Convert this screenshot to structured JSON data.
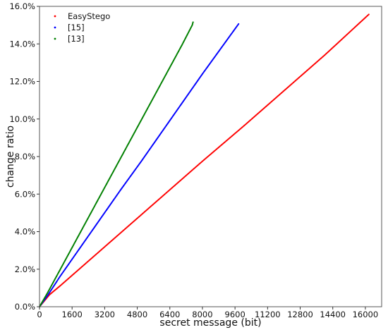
{
  "chart_data": {
    "type": "scatter",
    "title": "",
    "xlabel": "secret message (bit)",
    "ylabel": "change ratio",
    "xlim": [
      0,
      16800
    ],
    "ylim": [
      0,
      16
    ],
    "grid": false,
    "legend_position": "top-left",
    "x_ticks": [
      0,
      1600,
      3200,
      4800,
      6400,
      8000,
      9600,
      11200,
      12800,
      14400,
      16000
    ],
    "x_tick_labels": [
      "0",
      "1600",
      "3200",
      "4800",
      "6400",
      "8000",
      "9600",
      "11200",
      "12800",
      "14400",
      "16000"
    ],
    "y_ticks": [
      0,
      2,
      4,
      6,
      8,
      10,
      12,
      14,
      16
    ],
    "y_tick_labels": [
      "0.0%",
      "2.0%",
      "4.0%",
      "6.0%",
      "8.0%",
      "10.0%",
      "12.0%",
      "14.0%",
      "16.0%"
    ],
    "series": [
      {
        "name": "EasyStego",
        "color": "#ff0000",
        "points": [
          [
            0,
            0
          ],
          [
            500,
            0.65
          ],
          [
            1000,
            1.1
          ],
          [
            2000,
            2.05
          ],
          [
            4000,
            3.95
          ],
          [
            6000,
            5.85
          ],
          [
            8000,
            7.75
          ],
          [
            10000,
            9.6
          ],
          [
            12000,
            11.5
          ],
          [
            14000,
            13.4
          ],
          [
            16200,
            15.6
          ]
        ]
      },
      {
        "name": "[15]",
        "color": "#0000ff",
        "points": [
          [
            0,
            0
          ],
          [
            400,
            0.6
          ],
          [
            1000,
            1.6
          ],
          [
            2000,
            3.15
          ],
          [
            3000,
            4.7
          ],
          [
            4000,
            6.25
          ],
          [
            5000,
            7.75
          ],
          [
            6000,
            9.3
          ],
          [
            7000,
            10.85
          ],
          [
            8000,
            12.4
          ],
          [
            9000,
            13.9
          ],
          [
            9800,
            15.1
          ]
        ]
      },
      {
        "name": "[13]",
        "color": "#008000",
        "points": [
          [
            0,
            0
          ],
          [
            400,
            0.75
          ],
          [
            1000,
            1.95
          ],
          [
            2000,
            3.95
          ],
          [
            3000,
            5.95
          ],
          [
            4000,
            7.95
          ],
          [
            5000,
            9.95
          ],
          [
            6000,
            11.95
          ],
          [
            7000,
            13.95
          ],
          [
            7500,
            15.0
          ],
          [
            7550,
            15.2
          ]
        ]
      }
    ]
  }
}
